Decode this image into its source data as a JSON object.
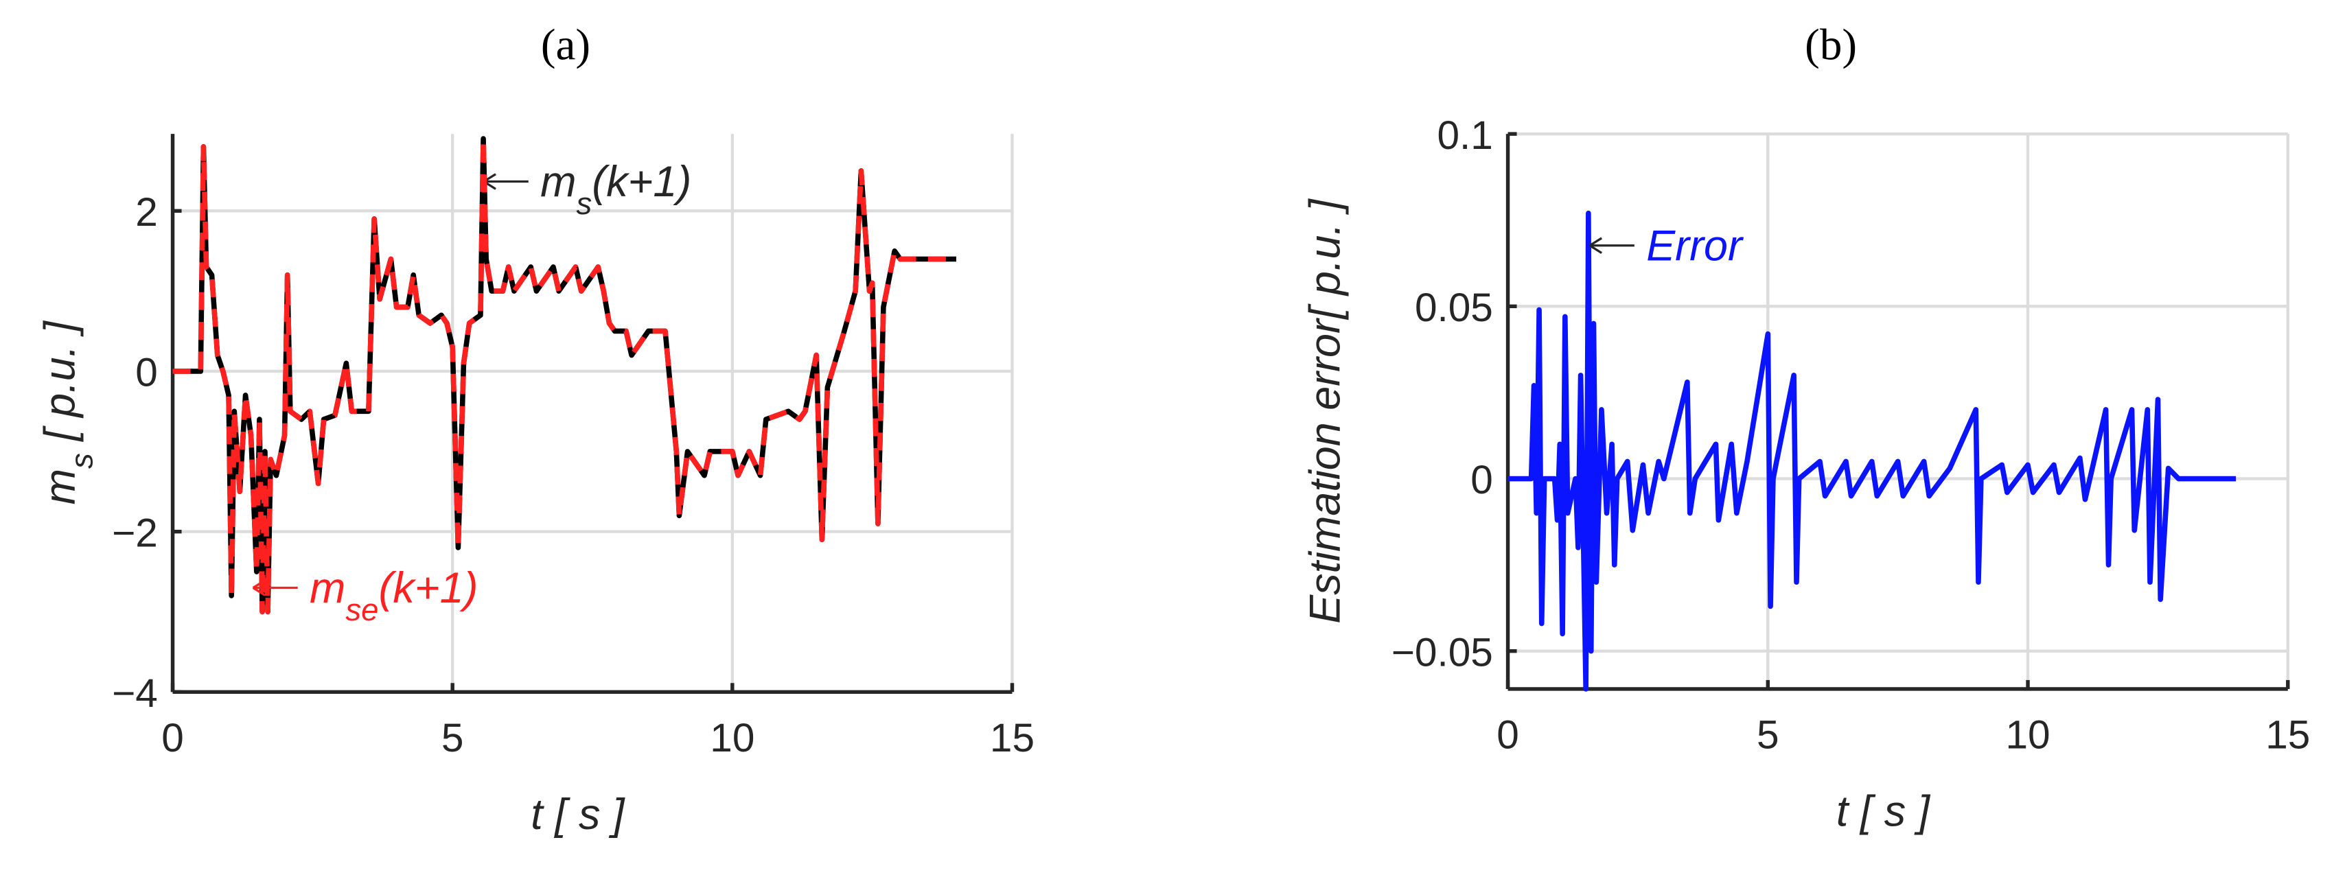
{
  "chart_data": [
    {
      "type": "line",
      "title": "(a)",
      "xlabel": [
        "t [ s ]"
      ],
      "ylabel": [
        "m",
        "s",
        " [ p.u. ]"
      ],
      "xlim": [
        0,
        15
      ],
      "ylim": [
        -4,
        2.96
      ],
      "xticks": [
        0,
        5,
        10,
        15
      ],
      "yticks": [
        {
          "value": -4,
          "label": "−4"
        },
        {
          "value": -2,
          "label": "−2"
        },
        0,
        2
      ],
      "grid": true,
      "x": [
        0,
        0.5,
        0.55,
        0.6,
        0.7,
        0.8,
        0.9,
        1.0,
        1.05,
        1.1,
        1.2,
        1.3,
        1.4,
        1.5,
        1.55,
        1.6,
        1.65,
        1.7,
        1.75,
        1.85,
        2.0,
        2.05,
        2.1,
        2.3,
        2.45,
        2.6,
        2.7,
        2.9,
        3.1,
        3.2,
        3.5,
        3.6,
        3.7,
        3.9,
        4.0,
        4.2,
        4.3,
        4.4,
        4.6,
        4.8,
        4.9,
        5.0,
        5.1,
        5.2,
        5.3,
        5.5,
        5.55,
        5.6,
        5.7,
        5.9,
        6.0,
        6.1,
        6.4,
        6.5,
        6.8,
        6.9,
        7.2,
        7.3,
        7.6,
        7.7,
        7.8,
        7.9,
        8.1,
        8.2,
        8.5,
        8.8,
        9.0,
        9.05,
        9.2,
        9.5,
        9.6,
        10.0,
        10.1,
        10.3,
        10.5,
        10.6,
        11.0,
        11.2,
        11.3,
        11.5,
        11.6,
        11.7,
        12.0,
        12.2,
        12.3,
        12.45,
        12.5,
        12.6,
        12.7,
        12.9,
        13.0,
        14.0
      ],
      "series": [
        {
          "label": [
            "m",
            "s",
            "(k+1)"
          ],
          "color": "#000000",
          "dashed": false,
          "values": [
            0,
            0,
            2.8,
            1.3,
            1.2,
            0.2,
            0,
            -0.3,
            -2.8,
            -0.5,
            -1.5,
            -0.3,
            -0.8,
            -2.5,
            -0.6,
            -3,
            -1,
            -3,
            -1.1,
            -1.3,
            -0.8,
            1.2,
            -0.5,
            -0.6,
            -0.5,
            -1.4,
            -0.6,
            -0.55,
            0.1,
            -0.5,
            -0.5,
            1.9,
            0.9,
            1.4,
            0.8,
            0.8,
            1.2,
            0.7,
            0.6,
            0.7,
            0.6,
            0.3,
            -2.2,
            0.1,
            0.6,
            0.7,
            2.9,
            1.4,
            1.0,
            1.0,
            1.3,
            1.0,
            1.3,
            1.0,
            1.3,
            1.0,
            1.3,
            1.0,
            1.3,
            1.0,
            0.6,
            0.5,
            0.5,
            0.2,
            0.5,
            0.5,
            -1.0,
            -1.8,
            -1.0,
            -1.3,
            -1.0,
            -1.0,
            -1.3,
            -1.0,
            -1.3,
            -0.6,
            -0.5,
            -0.6,
            -0.5,
            0.2,
            -2.1,
            -0.2,
            0.5,
            1.0,
            2.5,
            1.0,
            1.1,
            -1.9,
            0.8,
            1.5,
            1.4,
            1.4
          ]
        },
        {
          "label": [
            "m",
            "se",
            "(k+1)"
          ],
          "color": "#ff2020",
          "dashed": true,
          "values": [
            0,
            0,
            2.8,
            1.3,
            1.2,
            0.2,
            0,
            -0.3,
            -2.8,
            -0.5,
            -1.5,
            -0.3,
            -0.8,
            -2.5,
            -0.6,
            -3,
            -1,
            -3,
            -1.1,
            -1.3,
            -0.8,
            1.2,
            -0.5,
            -0.6,
            -0.5,
            -1.4,
            -0.6,
            -0.55,
            0.1,
            -0.5,
            -0.5,
            1.9,
            0.9,
            1.4,
            0.8,
            0.8,
            1.2,
            0.7,
            0.6,
            0.7,
            0.6,
            0.3,
            -2.2,
            0.1,
            0.6,
            0.7,
            2.9,
            1.4,
            1.0,
            1.0,
            1.3,
            1.0,
            1.3,
            1.0,
            1.3,
            1.0,
            1.3,
            1.0,
            1.3,
            1.0,
            0.6,
            0.5,
            0.5,
            0.2,
            0.5,
            0.5,
            -1.0,
            -1.8,
            -1.0,
            -1.3,
            -1.0,
            -1.0,
            -1.3,
            -1.0,
            -1.3,
            -0.6,
            -0.5,
            -0.6,
            -0.5,
            0.2,
            -2.1,
            -0.2,
            0.5,
            1.0,
            2.5,
            1.0,
            1.1,
            -1.9,
            0.8,
            1.5,
            1.4,
            1.4
          ]
        }
      ]
    },
    {
      "type": "line",
      "title": "(b)",
      "xlabel": [
        "t [ s ]"
      ],
      "ylabel": [
        "Estimation error[ p.u. ]"
      ],
      "xlim": [
        0,
        15
      ],
      "ylim": [
        -0.061,
        0.1
      ],
      "xticks": [
        0,
        5,
        10,
        15
      ],
      "yticks": [
        {
          "value": -0.05,
          "label": "−0.05"
        },
        0,
        0.05,
        0.1
      ],
      "grid": true,
      "x": [
        0,
        0.45,
        0.5,
        0.55,
        0.6,
        0.65,
        0.7,
        0.9,
        0.95,
        1.0,
        1.05,
        1.1,
        1.15,
        1.3,
        1.35,
        1.4,
        1.5,
        1.55,
        1.6,
        1.65,
        1.7,
        1.8,
        1.9,
        2.0,
        2.05,
        2.1,
        2.3,
        2.4,
        2.6,
        2.7,
        2.9,
        3.0,
        3.45,
        3.5,
        3.6,
        4.0,
        4.05,
        4.3,
        4.4,
        4.6,
        5.0,
        5.05,
        5.1,
        5.5,
        5.55,
        5.6,
        6.0,
        6.1,
        6.5,
        6.6,
        7.0,
        7.1,
        7.5,
        7.6,
        8.0,
        8.1,
        8.5,
        9.0,
        9.05,
        9.1,
        9.5,
        9.6,
        10.0,
        10.1,
        10.5,
        10.6,
        11.0,
        11.1,
        11.5,
        11.55,
        11.6,
        12.0,
        12.05,
        12.3,
        12.35,
        12.5,
        12.55,
        12.7,
        12.9,
        14.0
      ],
      "series": [
        {
          "label": [
            "Error"
          ],
          "color": "#0a14ff",
          "dashed": false,
          "values": [
            0,
            0,
            0.027,
            -0.01,
            0.049,
            -0.042,
            0,
            0,
            -0.012,
            0.01,
            -0.045,
            0.047,
            -0.01,
            0,
            -0.02,
            0.03,
            -0.061,
            0.077,
            -0.05,
            0.045,
            -0.03,
            0.02,
            -0.01,
            0.01,
            -0.025,
            0,
            0.005,
            -0.015,
            0.004,
            -0.01,
            0.005,
            0,
            0.028,
            -0.01,
            0,
            0.01,
            -0.012,
            0.01,
            -0.01,
            0.005,
            0.042,
            -0.037,
            0,
            0.03,
            -0.03,
            0,
            0.005,
            -0.005,
            0.005,
            -0.005,
            0.005,
            -0.005,
            0.005,
            -0.005,
            0.005,
            -0.005,
            0.003,
            0.02,
            -0.03,
            0,
            0.004,
            -0.004,
            0.004,
            -0.004,
            0.004,
            -0.004,
            0.006,
            -0.006,
            0.02,
            -0.025,
            0,
            0.02,
            -0.015,
            0.02,
            -0.03,
            0.023,
            -0.035,
            0.003,
            0,
            0
          ]
        }
      ]
    }
  ]
}
